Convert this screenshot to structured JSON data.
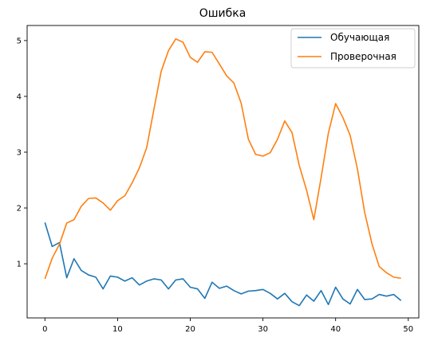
{
  "chart_data": {
    "type": "line",
    "title": "Ошибка",
    "xlabel": "",
    "ylabel": "",
    "xlim": [
      -2.45,
      51.45
    ],
    "ylim": [
      0.03,
      5.27
    ],
    "xticks": [
      0,
      10,
      20,
      30,
      40,
      50
    ],
    "yticks": [
      1,
      2,
      3,
      4,
      5
    ],
    "grid": false,
    "legend_position": "top-right",
    "x": [
      0,
      1,
      2,
      3,
      4,
      5,
      6,
      7,
      8,
      9,
      10,
      11,
      12,
      13,
      14,
      15,
      16,
      17,
      18,
      19,
      20,
      21,
      22,
      23,
      24,
      25,
      26,
      27,
      28,
      29,
      30,
      31,
      32,
      33,
      34,
      35,
      36,
      37,
      38,
      39,
      40,
      41,
      42,
      43,
      44,
      45,
      46,
      47,
      48,
      49
    ],
    "series": [
      {
        "name": "Обучающая",
        "color": "#1f77b4",
        "values": [
          1.74,
          1.31,
          1.38,
          0.75,
          1.09,
          0.88,
          0.8,
          0.76,
          0.55,
          0.78,
          0.76,
          0.69,
          0.75,
          0.62,
          0.69,
          0.73,
          0.71,
          0.55,
          0.71,
          0.73,
          0.58,
          0.55,
          0.38,
          0.67,
          0.56,
          0.6,
          0.52,
          0.46,
          0.51,
          0.52,
          0.54,
          0.47,
          0.37,
          0.47,
          0.32,
          0.25,
          0.44,
          0.33,
          0.52,
          0.27,
          0.58,
          0.37,
          0.28,
          0.54,
          0.36,
          0.37,
          0.45,
          0.42,
          0.45,
          0.34
        ]
      },
      {
        "name": "Проверочная",
        "color": "#ff7f0e",
        "values": [
          0.73,
          1.1,
          1.35,
          1.73,
          1.79,
          2.03,
          2.17,
          2.18,
          2.09,
          1.96,
          2.13,
          2.22,
          2.45,
          2.72,
          3.08,
          3.77,
          4.45,
          4.82,
          5.03,
          4.97,
          4.7,
          4.61,
          4.8,
          4.79,
          4.58,
          4.37,
          4.24,
          3.88,
          3.23,
          2.96,
          2.93,
          2.99,
          3.23,
          3.56,
          3.35,
          2.76,
          2.32,
          1.79,
          2.54,
          3.34,
          3.87,
          3.62,
          3.3,
          2.7,
          1.92,
          1.36,
          0.95,
          0.84,
          0.76,
          0.74
        ]
      }
    ]
  }
}
